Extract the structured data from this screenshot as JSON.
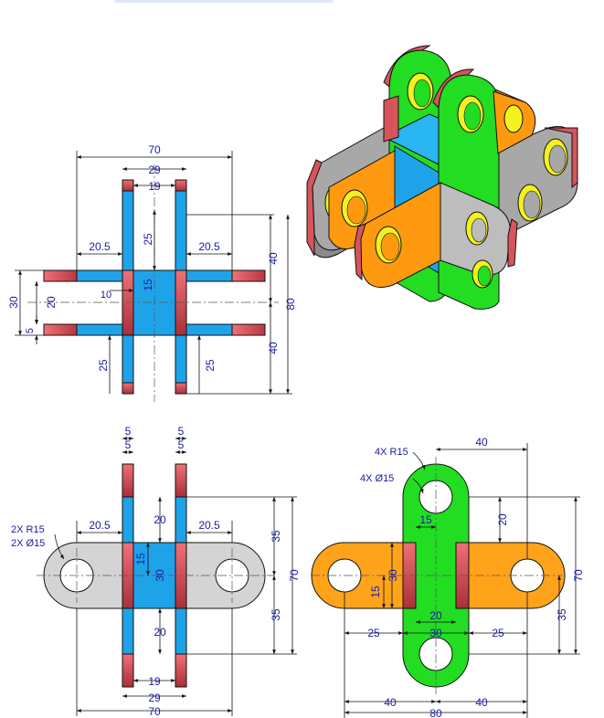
{
  "top_view": {
    "dims": {
      "overall_width": "70",
      "slot_outer": "29",
      "slot_inner": "19",
      "arm_left": "20.5",
      "arm_right": "20.5",
      "upper_arm": "25",
      "center": "15",
      "gap": "10",
      "height_30": "30",
      "height_20": "20",
      "thickness": "5",
      "lower_left": "25",
      "lower_right": "25",
      "upper_half": "40",
      "lower_half": "40",
      "overall_height": "80",
      "plate_left": "5",
      "plate_right": "5"
    }
  },
  "front_view": {
    "dims": {
      "plate_left": "5",
      "plate_right": "5",
      "arm_left": "20.5",
      "arm_right": "20.5",
      "upper": "20",
      "center": "15",
      "height_30": "30",
      "lower": "20",
      "slot_inner": "19",
      "slot_outer": "29",
      "overall_width": "70",
      "upper_half": "35",
      "lower_half": "35",
      "overall_height": "70"
    },
    "notes": {
      "radius": "2X R15",
      "diameter": "2X Ø15"
    }
  },
  "side_view": {
    "dims": {
      "top_width": "40",
      "slot_width": "15",
      "top_offset": "20",
      "center_height": "30",
      "center_15": "15",
      "inner_20": "20",
      "inner_30": "30",
      "left_25": "25",
      "right_25": "25",
      "left_40": "40",
      "right_40": "40",
      "overall_width": "80",
      "overall_height": "70",
      "lower_height": "35"
    },
    "notes": {
      "radius": "4X R15",
      "diameter": "4X Ø15"
    }
  },
  "colors": {
    "blue_plate": "#1fa3e8",
    "red_edge": "#d8545c",
    "gray_plate": "#d4d4d4",
    "orange_plate": "#ffa31a",
    "green_plate": "#22dd22",
    "yellow_hole": "#f2f21e",
    "dimension": "#1a1aa8"
  }
}
